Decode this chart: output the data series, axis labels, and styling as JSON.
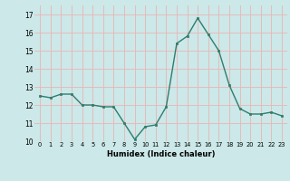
{
  "x": [
    0,
    1,
    2,
    3,
    4,
    5,
    6,
    7,
    8,
    9,
    10,
    11,
    12,
    13,
    14,
    15,
    16,
    17,
    18,
    19,
    20,
    21,
    22,
    23
  ],
  "y": [
    12.5,
    12.4,
    12.6,
    12.6,
    12.0,
    12.0,
    11.9,
    11.9,
    11.0,
    10.1,
    10.8,
    10.9,
    11.9,
    15.4,
    15.8,
    16.8,
    15.9,
    15.0,
    13.1,
    11.8,
    11.5,
    11.5,
    11.6,
    11.4
  ],
  "xlabel": "Humidex (Indice chaleur)",
  "line_color": "#2e7d6e",
  "marker_color": "#2e7d6e",
  "bg_color": "#cce8e8",
  "grid_major_color": "#b0d0d0",
  "grid_minor_color": "#daf0f0",
  "ylim": [
    10,
    17.5
  ],
  "xlim": [
    -0.5,
    23.5
  ],
  "yticks": [
    10,
    11,
    12,
    13,
    14,
    15,
    16,
    17
  ],
  "xticks": [
    0,
    1,
    2,
    3,
    4,
    5,
    6,
    7,
    8,
    9,
    10,
    11,
    12,
    13,
    14,
    15,
    16,
    17,
    18,
    19,
    20,
    21,
    22,
    23
  ]
}
